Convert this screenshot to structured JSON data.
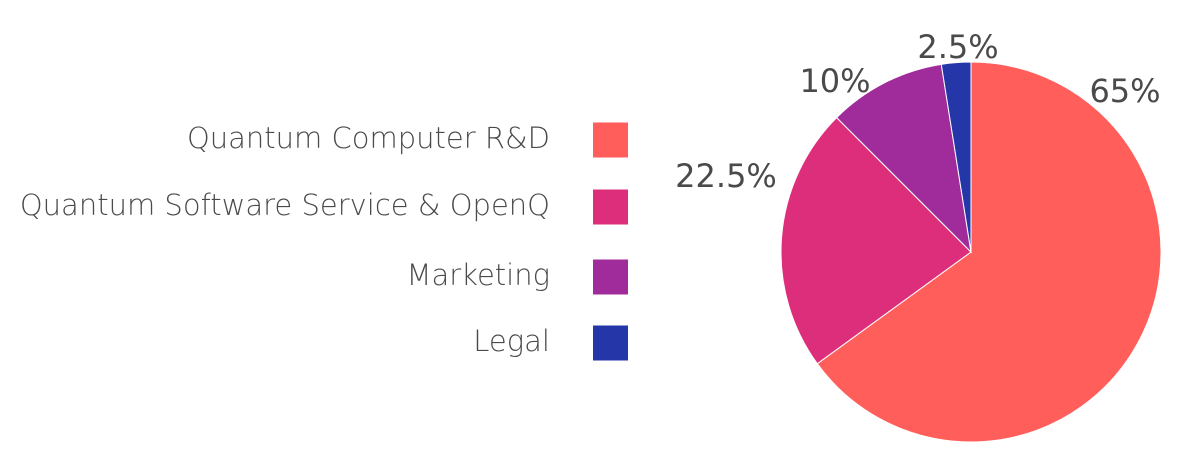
{
  "chart_data": {
    "type": "pie",
    "title": "",
    "categories": [
      "Quantum Computer R&D",
      "Quantum Software Service & OpenQ",
      "Marketing",
      "Legal"
    ],
    "values": [
      65,
      22.5,
      10,
      2.5
    ],
    "value_labels": [
      "65%",
      "22.5%",
      "10%",
      "2.5%"
    ],
    "colors": [
      "#ff5e5b",
      "#dc2e7a",
      "#a02c9b",
      "#2436a8"
    ],
    "start_angle": "12 o'clock",
    "direction": "clockwise",
    "legend_position": "left"
  }
}
